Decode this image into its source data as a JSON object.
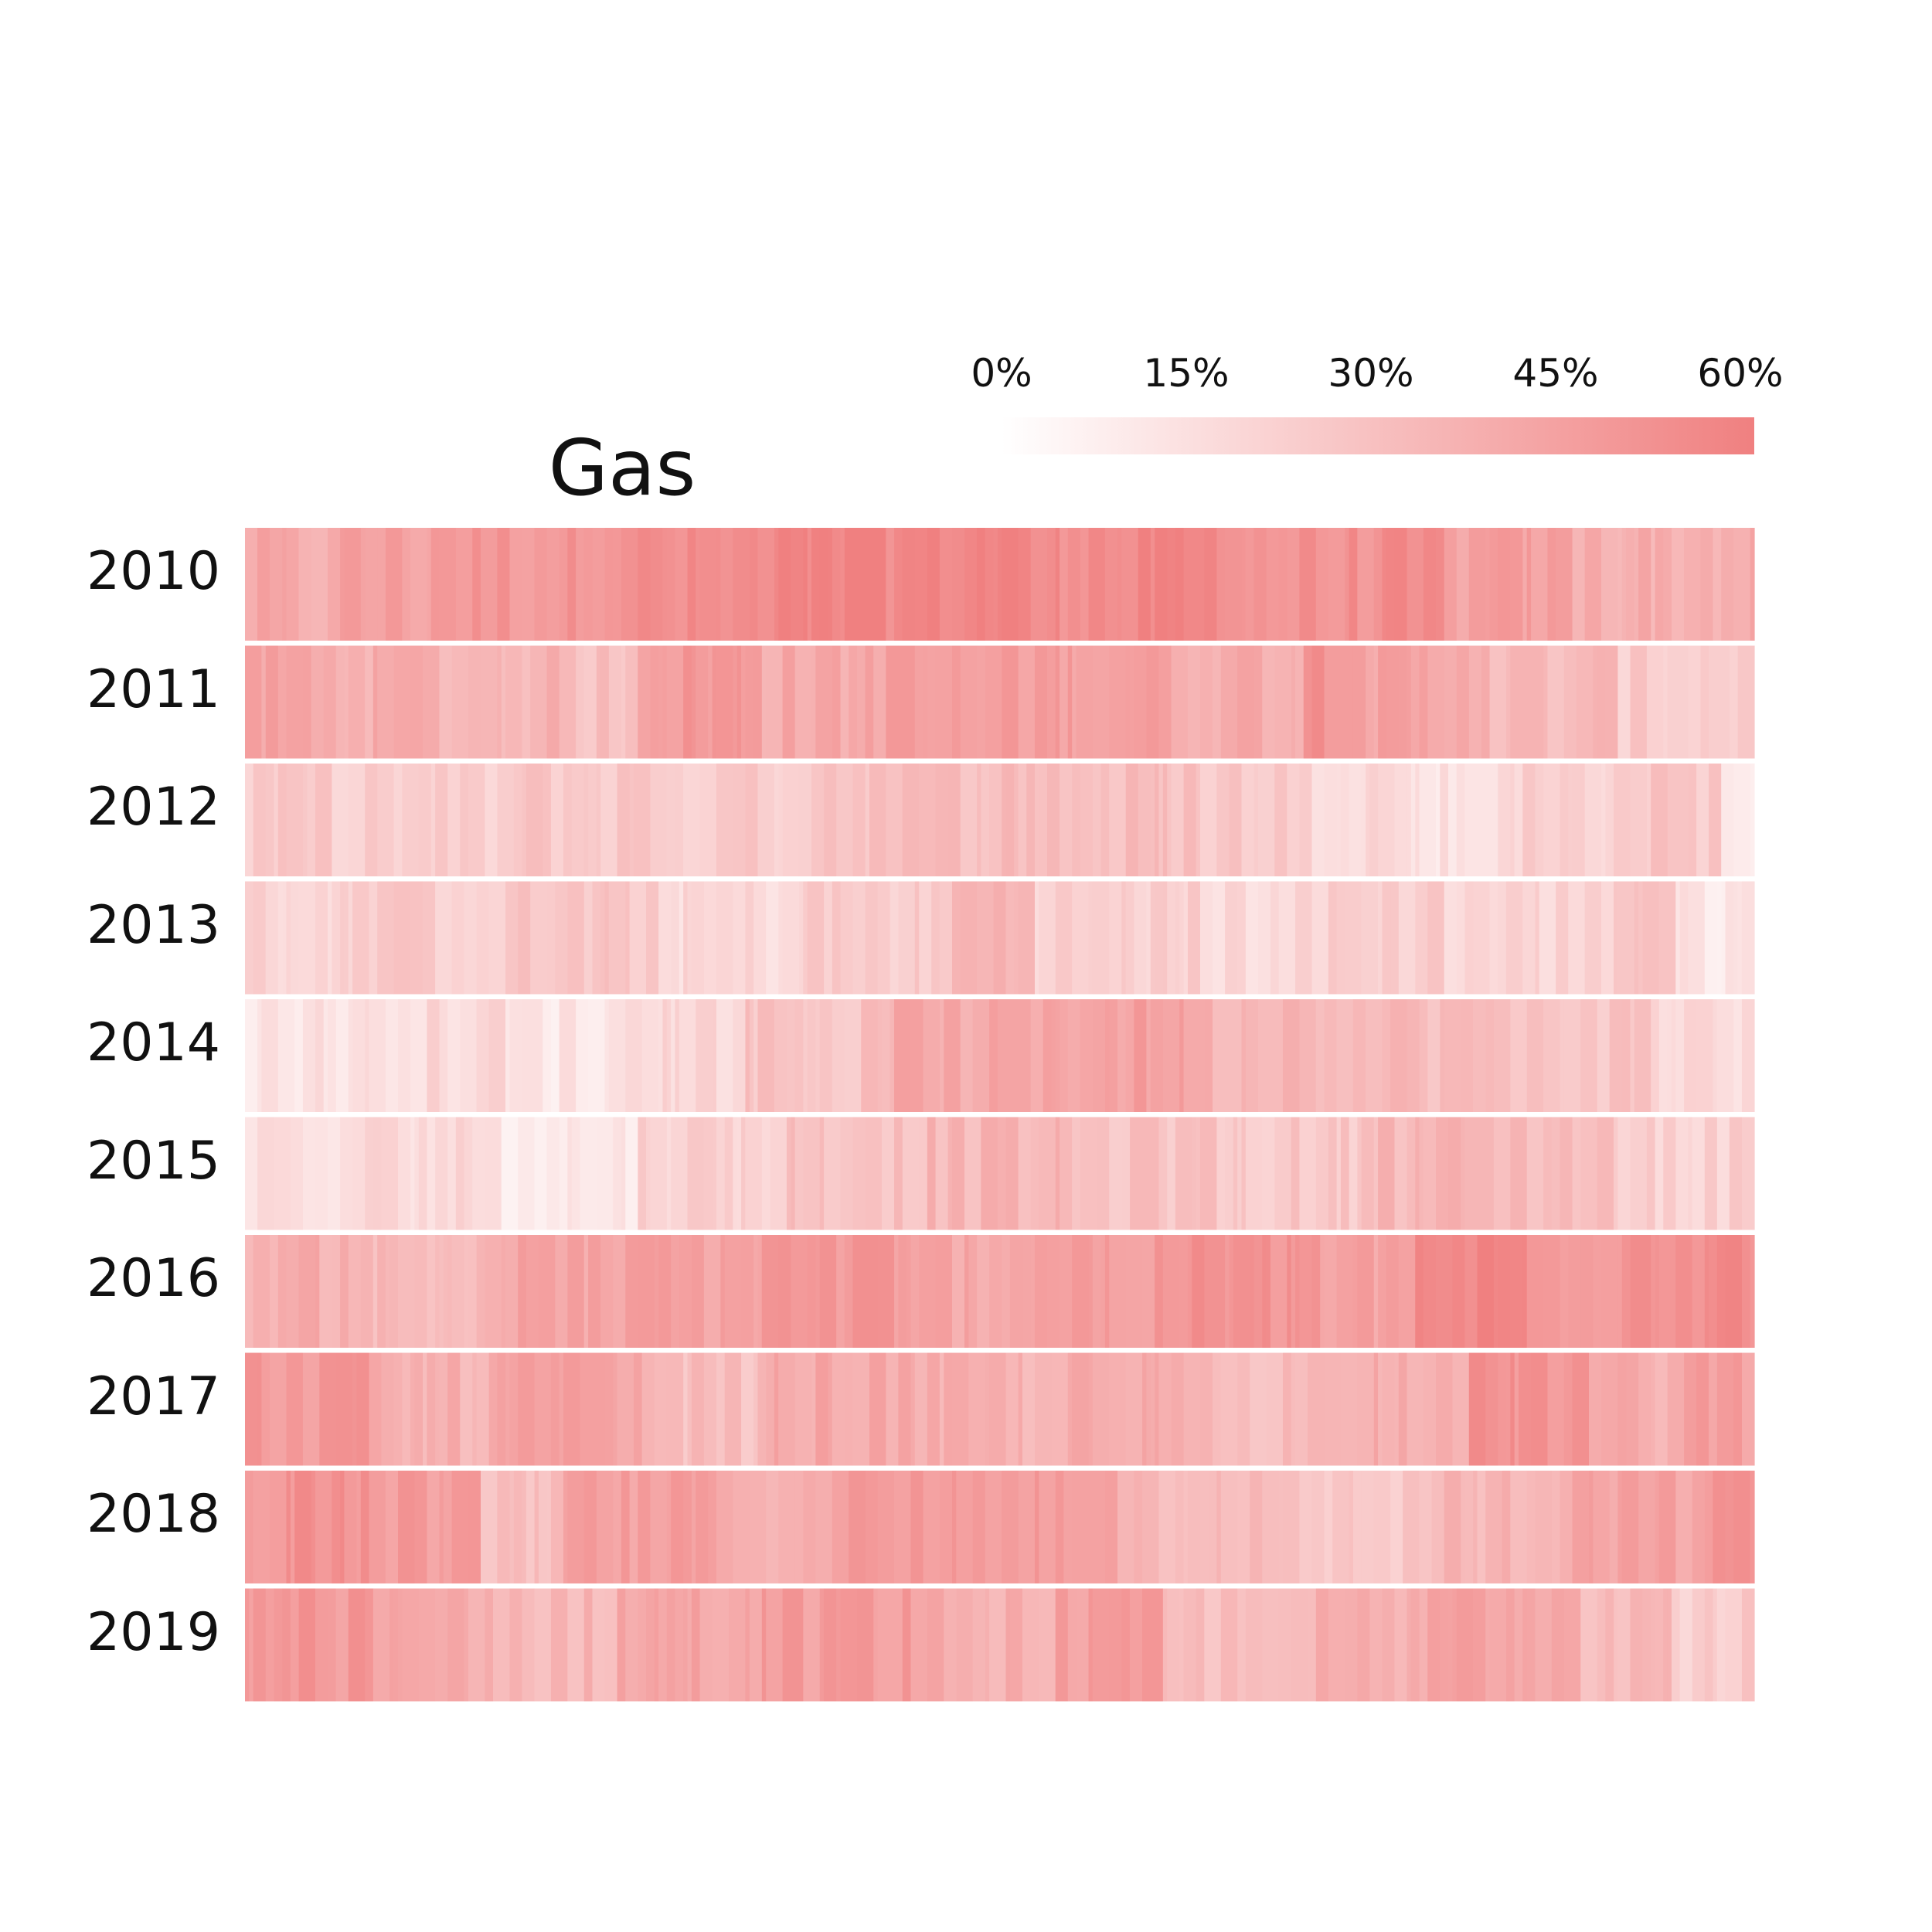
{
  "chart_data": {
    "type": "heatmap",
    "title": "Gas",
    "rows": [
      "2010",
      "2011",
      "2012",
      "2013",
      "2014",
      "2015",
      "2016",
      "2017",
      "2018",
      "2019"
    ],
    "colorbar": {
      "ticks": [
        "0%",
        "15%",
        "30%",
        "45%",
        "60%"
      ],
      "range": [
        0,
        60
      ],
      "color_low": "#ffffff",
      "color_high": "#f08080"
    },
    "days_per_year": 365,
    "series": [
      {
        "row": "2010",
        "segments": [
          [
            0,
            10,
            40
          ],
          [
            10,
            20,
            38
          ],
          [
            20,
            45,
            44
          ],
          [
            45,
            80,
            49
          ],
          [
            80,
            125,
            52
          ],
          [
            125,
            160,
            56
          ],
          [
            160,
            185,
            58
          ],
          [
            185,
            214,
            54
          ],
          [
            214,
            240,
            56
          ],
          [
            240,
            265,
            50
          ],
          [
            265,
            290,
            52
          ],
          [
            290,
            320,
            44
          ],
          [
            320,
            365,
            38
          ]
        ]
      },
      {
        "row": "2011",
        "segments": [
          [
            0,
            15,
            42
          ],
          [
            15,
            45,
            38
          ],
          [
            45,
            75,
            35
          ],
          [
            75,
            95,
            30
          ],
          [
            95,
            125,
            48
          ],
          [
            125,
            150,
            40
          ],
          [
            150,
            185,
            44
          ],
          [
            185,
            220,
            46
          ],
          [
            220,
            255,
            40
          ],
          [
            255,
            270,
            52
          ],
          [
            270,
            300,
            42
          ],
          [
            300,
            330,
            32
          ],
          [
            330,
            365,
            24
          ]
        ]
      },
      {
        "row": "2012",
        "segments": [
          [
            0,
            30,
            24
          ],
          [
            30,
            65,
            22
          ],
          [
            65,
            100,
            26
          ],
          [
            100,
            135,
            24
          ],
          [
            135,
            170,
            30
          ],
          [
            170,
            200,
            32
          ],
          [
            200,
            230,
            30
          ],
          [
            230,
            250,
            26
          ],
          [
            250,
            280,
            20
          ],
          [
            280,
            300,
            14
          ],
          [
            300,
            335,
            22
          ],
          [
            335,
            355,
            26
          ],
          [
            355,
            365,
            12
          ]
        ]
      },
      {
        "row": "2013",
        "segments": [
          [
            0,
            25,
            20
          ],
          [
            25,
            60,
            24
          ],
          [
            60,
            100,
            26
          ],
          [
            100,
            135,
            18
          ],
          [
            135,
            170,
            24
          ],
          [
            170,
            188,
            35
          ],
          [
            188,
            230,
            22
          ],
          [
            230,
            260,
            18
          ],
          [
            260,
            290,
            24
          ],
          [
            290,
            330,
            20
          ],
          [
            330,
            345,
            30
          ],
          [
            345,
            365,
            12
          ]
        ]
      },
      {
        "row": "2014",
        "segments": [
          [
            0,
            30,
            14
          ],
          [
            30,
            60,
            18
          ],
          [
            60,
            90,
            12
          ],
          [
            90,
            120,
            20
          ],
          [
            120,
            155,
            28
          ],
          [
            155,
            195,
            40
          ],
          [
            195,
            230,
            44
          ],
          [
            230,
            265,
            36
          ],
          [
            265,
            300,
            32
          ],
          [
            300,
            340,
            28
          ],
          [
            340,
            365,
            18
          ]
        ]
      },
      {
        "row": "2015",
        "segments": [
          [
            0,
            25,
            14
          ],
          [
            25,
            60,
            18
          ],
          [
            60,
            95,
            12
          ],
          [
            95,
            130,
            22
          ],
          [
            130,
            165,
            30
          ],
          [
            165,
            200,
            34
          ],
          [
            200,
            235,
            28
          ],
          [
            235,
            270,
            26
          ],
          [
            270,
            300,
            34
          ],
          [
            300,
            330,
            32
          ],
          [
            330,
            365,
            22
          ]
        ]
      },
      {
        "row": "2016",
        "segments": [
          [
            0,
            30,
            38
          ],
          [
            30,
            60,
            32
          ],
          [
            60,
            95,
            42
          ],
          [
            95,
            125,
            44
          ],
          [
            125,
            155,
            48
          ],
          [
            155,
            190,
            42
          ],
          [
            190,
            225,
            46
          ],
          [
            225,
            260,
            50
          ],
          [
            260,
            280,
            42
          ],
          [
            280,
            310,
            56
          ],
          [
            310,
            335,
            50
          ],
          [
            335,
            365,
            54
          ]
        ]
      },
      {
        "row": "2017",
        "segments": [
          [
            0,
            30,
            48
          ],
          [
            30,
            60,
            36
          ],
          [
            60,
            95,
            42
          ],
          [
            95,
            125,
            30
          ],
          [
            125,
            160,
            40
          ],
          [
            160,
            195,
            36
          ],
          [
            195,
            230,
            38
          ],
          [
            230,
            265,
            32
          ],
          [
            265,
            295,
            40
          ],
          [
            295,
            325,
            50
          ],
          [
            325,
            345,
            38
          ],
          [
            345,
            365,
            46
          ]
        ]
      },
      {
        "row": "2018",
        "segments": [
          [
            0,
            30,
            50
          ],
          [
            30,
            55,
            46
          ],
          [
            55,
            75,
            28
          ],
          [
            75,
            110,
            44
          ],
          [
            110,
            145,
            40
          ],
          [
            145,
            180,
            46
          ],
          [
            180,
            210,
            48
          ],
          [
            210,
            245,
            34
          ],
          [
            245,
            285,
            26
          ],
          [
            285,
            320,
            34
          ],
          [
            320,
            350,
            42
          ],
          [
            350,
            365,
            48
          ]
        ]
      },
      {
        "row": "2019",
        "segments": [
          [
            0,
            30,
            48
          ],
          [
            30,
            60,
            40
          ],
          [
            60,
            90,
            34
          ],
          [
            90,
            125,
            42
          ],
          [
            125,
            160,
            46
          ],
          [
            160,
            195,
            38
          ],
          [
            195,
            220,
            44
          ],
          [
            220,
            250,
            30
          ],
          [
            250,
            285,
            36
          ],
          [
            285,
            320,
            44
          ],
          [
            320,
            345,
            34
          ],
          [
            345,
            365,
            24
          ]
        ]
      }
    ]
  }
}
